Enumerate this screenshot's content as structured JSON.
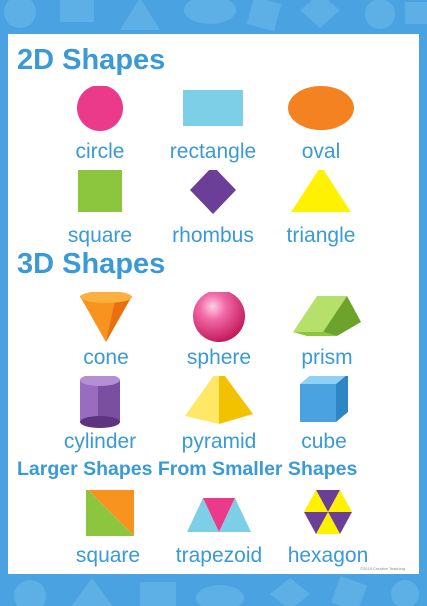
{
  "sections": {
    "two_d": {
      "title": "2D Shapes",
      "items": [
        {
          "label": "circle",
          "color": "#ec3a8a"
        },
        {
          "label": "rectangle",
          "color": "#7ccfe6"
        },
        {
          "label": "oval",
          "color": "#f58220"
        },
        {
          "label": "square",
          "color": "#8cc63f"
        },
        {
          "label": "rhombus",
          "color": "#6b3f98"
        },
        {
          "label": "triangle",
          "color": "#fff200"
        }
      ]
    },
    "three_d": {
      "title": "3D Shapes",
      "items": [
        {
          "label": "cone",
          "color": "#f7931e"
        },
        {
          "label": "sphere",
          "color": "#ec3a8a"
        },
        {
          "label": "prism",
          "color": "#8cc63f"
        },
        {
          "label": "cylinder",
          "color": "#7b4fa0"
        },
        {
          "label": "pyramid",
          "color": "#ffd800"
        },
        {
          "label": "cube",
          "color": "#4aa3e0"
        }
      ]
    },
    "larger": {
      "title": "Larger Shapes From Smaller Shapes",
      "items": [
        {
          "label": "square",
          "colors": [
            "#f7931e",
            "#8cc63f"
          ]
        },
        {
          "label": "trapezoid",
          "colors": [
            "#7ccfe6",
            "#ec3a8a"
          ]
        },
        {
          "label": "hexagon",
          "colors": [
            "#6b3f98",
            "#fff200"
          ]
        }
      ]
    }
  },
  "credit": "©2015 Creative Teaching"
}
